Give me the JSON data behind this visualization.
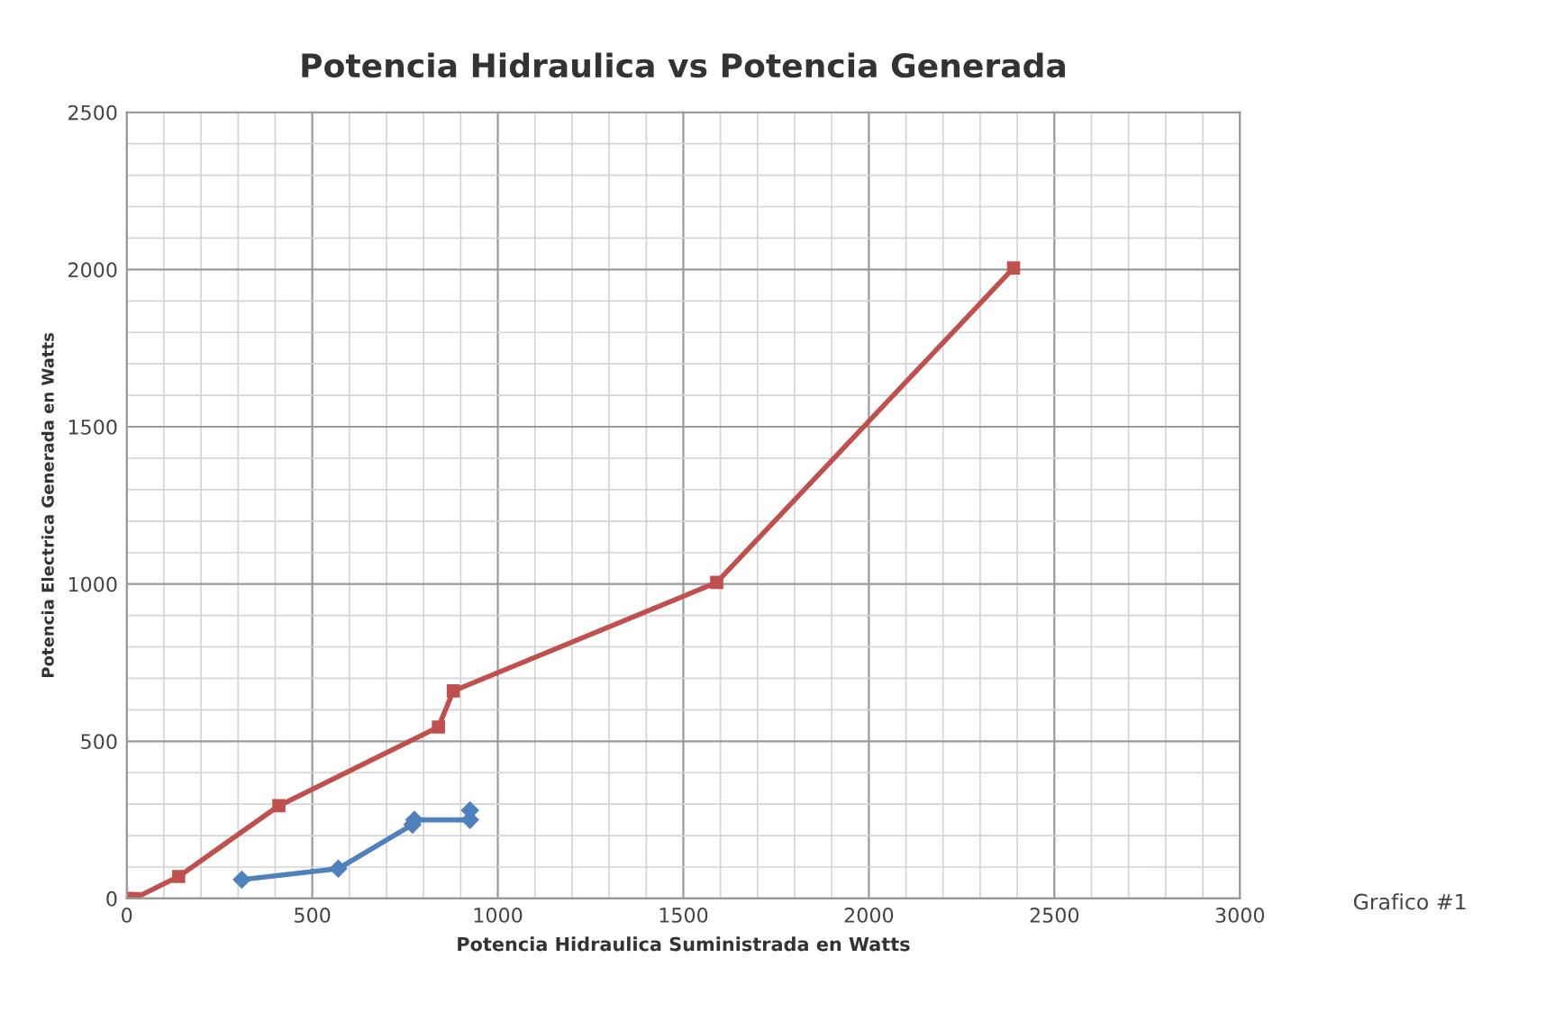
{
  "chart_data": {
    "type": "line",
    "title": "Potencia Hidraulica vs Potencia Generada",
    "xlabel": "Potencia Hidraulica Suministrada en Watts",
    "ylabel": "Potencia Electrica Generada en Watts",
    "series": [
      {
        "color": "#4f81bd",
        "marker": "diamond",
        "x": [
          310,
          570,
          770,
          775,
          925,
          925
        ],
        "values": [
          60,
          95,
          235,
          250,
          250,
          280
        ]
      },
      {
        "color": "#c0504d",
        "marker": "square",
        "x": [
          0,
          20,
          140,
          410,
          840,
          880,
          1590,
          2390
        ],
        "values": [
          0,
          0,
          70,
          295,
          545,
          660,
          1005,
          2005
        ]
      }
    ],
    "xlim": [
      0,
      3000
    ],
    "xticks": [
      0,
      500,
      1000,
      1500,
      2000,
      2500,
      3000
    ],
    "ylim": [
      0,
      2500
    ],
    "yticks": [
      0,
      500,
      1000,
      1500,
      2000,
      2500
    ],
    "grid": true,
    "line_style": "solid",
    "annotations": [
      "Grafico #1"
    ]
  }
}
